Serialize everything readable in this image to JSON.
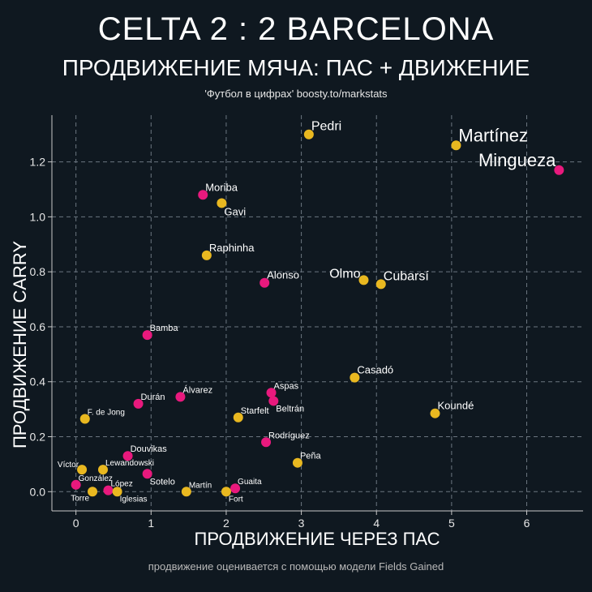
{
  "header": {
    "title": "CELTA 2 : 2 BARCELONA",
    "subtitle": "ПРОДВИЖЕНИЕ МЯЧА: ПАС + ДВИЖЕНИЕ",
    "source": "'Футбол в цифрах' boosty.to/markstats"
  },
  "footnote": "продвижение оценивается с помощью модели Fields Gained",
  "colors": {
    "background": "#0f1820",
    "celta": "#e8197d",
    "barcelona": "#e9b820",
    "grid": "#6b7680",
    "axis": "#c9c9c9",
    "text": "#ffffff"
  },
  "chart_data": {
    "type": "scatter",
    "title": "ПРОДВИЖЕНИЕ МЯЧА: ПАС + ДВИЖЕНИЕ",
    "xlabel": "ПРОДВИЖЕНИЕ ЧЕРЕЗ ПАС",
    "ylabel": "ПРОДВИЖЕНИЕ CARRY",
    "xlim": [
      -0.32,
      6.75
    ],
    "ylim": [
      -0.07,
      1.37
    ],
    "xticks": [
      0,
      1,
      2,
      3,
      4,
      5,
      6
    ],
    "yticks": [
      0.0,
      0.2,
      0.4,
      0.6,
      0.8,
      1.0,
      1.2
    ],
    "ytick_labels": [
      "0.0",
      "0.2",
      "0.4",
      "0.6",
      "0.8",
      "1.0",
      "1.2"
    ],
    "grid": true,
    "series": [
      {
        "name": "Celta",
        "color": "#e8197d",
        "points": [
          {
            "label": "Mingueza",
            "x": 6.43,
            "y": 1.17,
            "size": "xl",
            "anchor": "special"
          },
          {
            "label": "Moriba",
            "x": 1.69,
            "y": 1.08,
            "size": "md",
            "anchor": "ne"
          },
          {
            "label": "Alonso",
            "x": 2.51,
            "y": 0.76,
            "size": "md",
            "anchor": "ne"
          },
          {
            "label": "Bamba",
            "x": 0.95,
            "y": 0.57,
            "size": "sm",
            "anchor": "ne"
          },
          {
            "label": "Aspas",
            "x": 2.6,
            "y": 0.36,
            "size": "sm",
            "anchor": "ne"
          },
          {
            "label": "Beltrán",
            "x": 2.63,
            "y": 0.33,
            "size": "sm",
            "anchor": "se"
          },
          {
            "label": "Álvarez",
            "x": 1.39,
            "y": 0.345,
            "size": "sm",
            "anchor": "ne"
          },
          {
            "label": "Durán",
            "x": 0.83,
            "y": 0.32,
            "size": "sm",
            "anchor": "ne"
          },
          {
            "label": "Rodríguez",
            "x": 2.53,
            "y": 0.18,
            "size": "sm",
            "anchor": "ne"
          },
          {
            "label": "Douvikas",
            "x": 0.69,
            "y": 0.13,
            "size": "sm",
            "anchor": "ne"
          },
          {
            "label": "Sotelo",
            "x": 0.95,
            "y": 0.065,
            "size": "sm",
            "anchor": "se"
          },
          {
            "label": "González",
            "x": 0.0,
            "y": 0.025,
            "size": "xs",
            "anchor": "ne"
          },
          {
            "label": "López",
            "x": 0.43,
            "y": 0.005,
            "size": "xs",
            "anchor": "ne"
          },
          {
            "label": "Guaita",
            "x": 2.12,
            "y": 0.012,
            "size": "xs",
            "anchor": "ne"
          }
        ]
      },
      {
        "name": "Barcelona",
        "color": "#e9b820",
        "points": [
          {
            "label": "Pedri",
            "x": 3.1,
            "y": 1.3,
            "size": "lg",
            "anchor": "ne"
          },
          {
            "label": "Martínez",
            "x": 5.06,
            "y": 1.26,
            "size": "xl",
            "anchor": "ne"
          },
          {
            "label": "Gavi",
            "x": 1.94,
            "y": 1.05,
            "size": "md",
            "anchor": "se"
          },
          {
            "label": "Raphinha",
            "x": 1.74,
            "y": 0.86,
            "size": "md",
            "anchor": "ne"
          },
          {
            "label": "Olmo",
            "x": 3.83,
            "y": 0.77,
            "size": "lg",
            "anchor": "nw"
          },
          {
            "label": "Cubarsí",
            "x": 4.06,
            "y": 0.755,
            "size": "lg",
            "anchor": "ne"
          },
          {
            "label": "Casadó",
            "x": 3.71,
            "y": 0.415,
            "size": "md",
            "anchor": "ne"
          },
          {
            "label": "Koundé",
            "x": 4.78,
            "y": 0.285,
            "size": "md",
            "anchor": "ne"
          },
          {
            "label": "Starfelt",
            "x": 2.16,
            "y": 0.27,
            "size": "sm",
            "anchor": "ne"
          },
          {
            "label": "F. de Jong",
            "x": 0.12,
            "y": 0.265,
            "size": "xs",
            "anchor": "ne"
          },
          {
            "label": "Peña",
            "x": 2.95,
            "y": 0.105,
            "size": "sm",
            "anchor": "ne"
          },
          {
            "label": "Víctor",
            "x": 0.08,
            "y": 0.08,
            "size": "xs",
            "anchor": "nw"
          },
          {
            "label": "Lewandowski",
            "x": 0.36,
            "y": 0.08,
            "size": "xs",
            "anchor": "ne"
          },
          {
            "label": "Martín",
            "x": 1.47,
            "y": 0.0,
            "size": "xs",
            "anchor": "ne"
          },
          {
            "label": "Torre",
            "x": 0.22,
            "y": 0.0,
            "size": "xs",
            "anchor": "sw"
          },
          {
            "label": "Iglesias",
            "x": 0.55,
            "y": 0.0,
            "size": "xs",
            "anchor": "se"
          },
          {
            "label": "Fort",
            "x": 2.0,
            "y": 0.0,
            "size": "xs",
            "anchor": "se"
          }
        ]
      }
    ]
  }
}
